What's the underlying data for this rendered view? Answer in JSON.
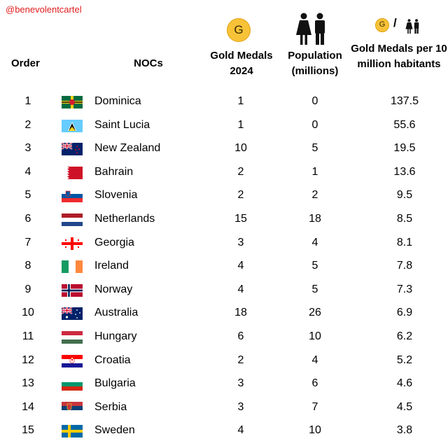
{
  "watermark": "@benevolentcartel",
  "header": {
    "order": "Order",
    "nocs": "NOCs",
    "gold": "Gold Medals 2024",
    "population": "Population (millions)",
    "ratio": "Gold Medals per 10 million habitants",
    "medal_letter": "G",
    "slash": "/"
  },
  "icons": [
    "gold-medal-icon",
    "people-icon"
  ],
  "colors": {
    "medal_gold": "#f7c237",
    "watermark": "#e01b1b"
  },
  "chart_data": {
    "type": "table",
    "columns": [
      "Order",
      "NOCs",
      "Gold Medals 2024",
      "Population (millions)",
      "Gold Medals per 10 million habitants"
    ],
    "rows": [
      {
        "order": "1",
        "noc": "Dominica",
        "gold": "1",
        "population": "0",
        "ratio": "137.5",
        "flag": "dominica"
      },
      {
        "order": "2",
        "noc": "Saint Lucia",
        "gold": "1",
        "population": "0",
        "ratio": "55.6",
        "flag": "saint-lucia"
      },
      {
        "order": "3",
        "noc": "New Zealand",
        "gold": "10",
        "population": "5",
        "ratio": "19.5",
        "flag": "new-zealand"
      },
      {
        "order": "4",
        "noc": "Bahrain",
        "gold": "2",
        "population": "1",
        "ratio": "13.6",
        "flag": "bahrain"
      },
      {
        "order": "5",
        "noc": "Slovenia",
        "gold": "2",
        "population": "2",
        "ratio": "9.5",
        "flag": "slovenia"
      },
      {
        "order": "6",
        "noc": "Netherlands",
        "gold": "15",
        "population": "18",
        "ratio": "8.5",
        "flag": "netherlands"
      },
      {
        "order": "7",
        "noc": "Georgia",
        "gold": "3",
        "population": "4",
        "ratio": "8.1",
        "flag": "georgia"
      },
      {
        "order": "8",
        "noc": "Ireland",
        "gold": "4",
        "population": "5",
        "ratio": "7.8",
        "flag": "ireland"
      },
      {
        "order": "9",
        "noc": "Norway",
        "gold": "4",
        "population": "5",
        "ratio": "7.3",
        "flag": "norway"
      },
      {
        "order": "10",
        "noc": "Australia",
        "gold": "18",
        "population": "26",
        "ratio": "6.9",
        "flag": "australia"
      },
      {
        "order": "11",
        "noc": "Hungary",
        "gold": "6",
        "population": "10",
        "ratio": "6.2",
        "flag": "hungary"
      },
      {
        "order": "12",
        "noc": "Croatia",
        "gold": "2",
        "population": "4",
        "ratio": "5.2",
        "flag": "croatia"
      },
      {
        "order": "13",
        "noc": "Bulgaria",
        "gold": "3",
        "population": "6",
        "ratio": "4.6",
        "flag": "bulgaria"
      },
      {
        "order": "14",
        "noc": "Serbia",
        "gold": "3",
        "population": "7",
        "ratio": "4.5",
        "flag": "serbia"
      },
      {
        "order": "15",
        "noc": "Sweden",
        "gold": "4",
        "population": "10",
        "ratio": "3.8",
        "flag": "sweden"
      }
    ]
  }
}
